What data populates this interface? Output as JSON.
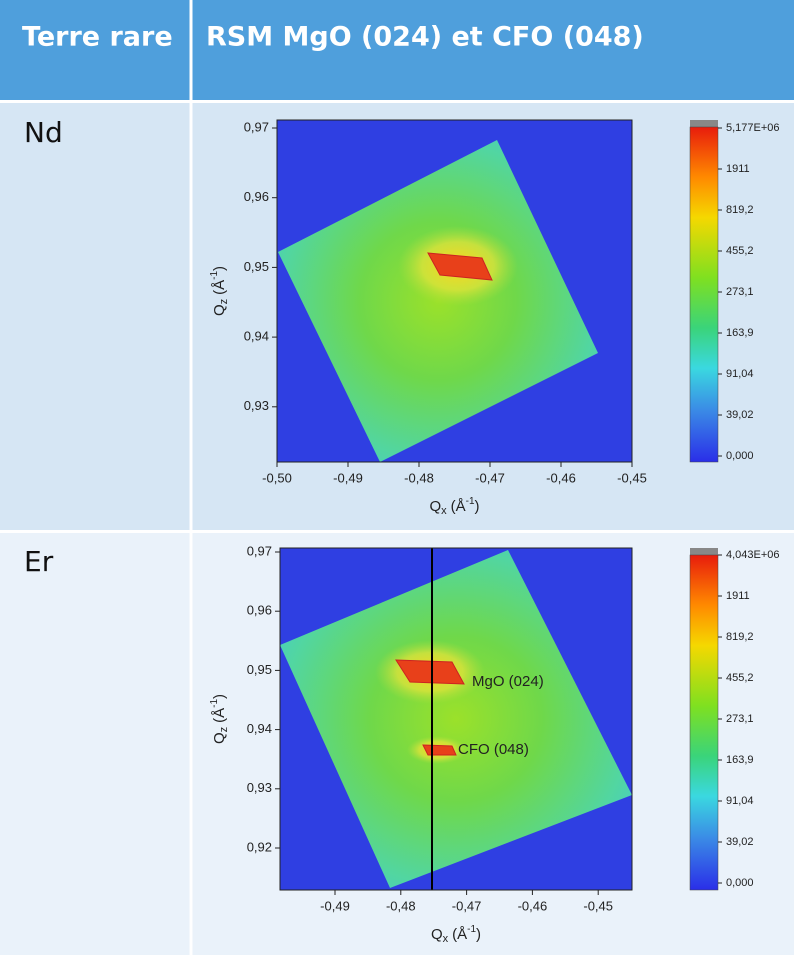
{
  "header": {
    "col1": "Terre rare",
    "col2": "RSM MgO (024) et CFO (048)"
  },
  "rows": [
    {
      "label": "Nd",
      "figure": {
        "x_axis": {
          "symbol": "Q",
          "sub": "x",
          "unit": "(Å",
          "sup": "-1",
          "close": ")"
        },
        "y_axis": {
          "symbol": "Q",
          "sub": "z",
          "unit": "(Å",
          "sup": "-1",
          "close": ")"
        },
        "xticks": [
          "-0,50",
          "-0,49",
          "-0,48",
          "-0,47",
          "-0,46",
          "-0,45"
        ],
        "yticks": [
          "0,97",
          "0,96",
          "0,95",
          "0,94",
          "0,93"
        ],
        "colorbar": [
          "5,177E+06",
          "1911",
          "819,2",
          "455,2",
          "273,1",
          "163,9",
          "91,04",
          "39,02",
          "0,000"
        ]
      }
    },
    {
      "label": "Er",
      "figure": {
        "x_axis": {
          "symbol": "Q",
          "sub": "x",
          "unit": "(Å",
          "sup": "-1",
          "close": ")"
        },
        "y_axis": {
          "symbol": "Q",
          "sub": "z",
          "unit": "(Å",
          "sup": "-1",
          "close": ")"
        },
        "xticks": [
          "-0,49",
          "-0,48",
          "-0,47",
          "-0,46",
          "-0,45"
        ],
        "yticks": [
          "0,97",
          "0,96",
          "0,95",
          "0,94",
          "0,93",
          "0,92"
        ],
        "colorbar": [
          "4,043E+06",
          "1911",
          "819,2",
          "455,2",
          "273,1",
          "163,9",
          "91,04",
          "39,02",
          "0,000"
        ],
        "annotations": [
          "MgO (024)",
          "CFO (048)"
        ]
      }
    }
  ]
}
